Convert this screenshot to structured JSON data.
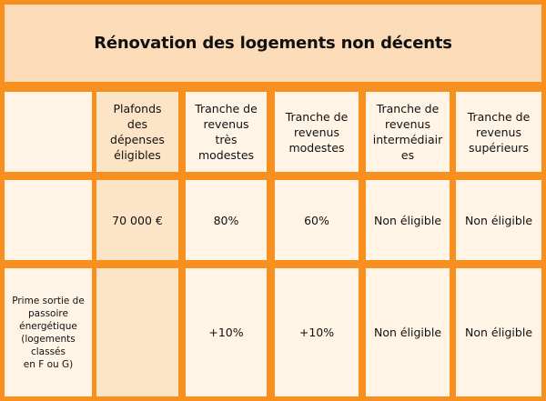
{
  "title": "Rénovation des logements non décents",
  "colors": {
    "border": "#F7901E",
    "header_bg": "#FCDCB8",
    "cell_bg": "#FFF4E6",
    "accent_col_bg": "#FCE4C6"
  },
  "table": {
    "headers": [
      "",
      "Plafonds\ndes\ndépenses\néligibles",
      "Tranche de\nrevenus très\nmodestes",
      "Tranche de\nrevenus\nmodestes",
      "Tranche de\nrevenus\nintermédiair\nes",
      "Tranche de\nrevenus\nsupérieurs"
    ],
    "rows": [
      [
        "",
        "70 000 €",
        "80%",
        "60%",
        "Non éligible",
        "Non éligible"
      ],
      [
        "Prime sortie de\npassoire\nénergétique\n(logements\nclassés\nen F ou G)",
        "",
        "+10%",
        "+10%",
        "Non éligible",
        "Non éligible"
      ]
    ]
  }
}
